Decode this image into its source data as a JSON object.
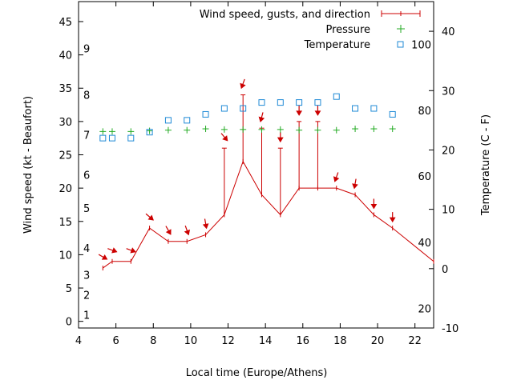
{
  "chart_data": {
    "type": "line",
    "xlabel": "Local time (Europe/Athens)",
    "ylabel": "Wind speed (kt - Beaufort)",
    "y2label": "Temperature (C - F)",
    "xlim": [
      4,
      23
    ],
    "ylim": [
      -1,
      48
    ],
    "y2lim": [
      -10,
      45
    ],
    "x_ticks": [
      4,
      6,
      8,
      10,
      12,
      14,
      16,
      18,
      20,
      22
    ],
    "y_ticks": [
      0,
      5,
      10,
      15,
      20,
      25,
      30,
      35,
      40,
      45
    ],
    "y2_ticks": [
      -10,
      0,
      10,
      20,
      30,
      40
    ],
    "beaufort_scale": [
      {
        "label": "1",
        "y": 1
      },
      {
        "label": "2",
        "y": 4
      },
      {
        "label": "3",
        "y": 7
      },
      {
        "label": "4",
        "y": 11
      },
      {
        "label": "5",
        "y": 17
      },
      {
        "label": "6",
        "y": 22
      },
      {
        "label": "7",
        "y": 28
      },
      {
        "label": "8",
        "y": 34
      },
      {
        "label": "9",
        "y": 41
      }
    ],
    "fahrenheit_scale": [
      {
        "label": "20",
        "y2": -6.7
      },
      {
        "label": "40",
        "y2": 4.4
      },
      {
        "label": "60",
        "y2": 15.6
      },
      {
        "label": "80",
        "y2": 26.7
      },
      {
        "label": "100",
        "y2": 37.8
      }
    ],
    "legend": {
      "wind": "Wind speed, gusts, and direction",
      "pressure": "Pressure",
      "temperature": "Temperature",
      "position": "top-right"
    },
    "series": [
      {
        "name": "Wind speed, gusts, and direction",
        "x": [
          5.3,
          5.8,
          6.8,
          7.8,
          8.8,
          9.8,
          10.8,
          11.8,
          12.8,
          13.8,
          14.8,
          15.8,
          16.8,
          17.8,
          18.8,
          19.8,
          20.8,
          23
        ],
        "speed": [
          8,
          9,
          9,
          14,
          12,
          12,
          13,
          16,
          24,
          19,
          16,
          20,
          20,
          20,
          19,
          16,
          14,
          9
        ],
        "gust": [
          null,
          null,
          null,
          null,
          null,
          null,
          null,
          26,
          34,
          29,
          26,
          30,
          30,
          null,
          null,
          null,
          null,
          null
        ],
        "direction_deg": [
          300,
          290,
          290,
          310,
          330,
          340,
          350,
          320,
          20,
          15,
          0,
          0,
          0,
          20,
          10,
          0,
          0,
          null
        ],
        "color": "#cc0000"
      },
      {
        "name": "Pressure",
        "x": [
          5.3,
          5.8,
          6.8,
          7.8,
          8.8,
          9.8,
          10.8,
          11.8,
          12.8,
          13.8,
          14.8,
          15.8,
          16.8,
          17.8,
          18.8,
          19.8,
          20.8
        ],
        "y": [
          28.5,
          28.5,
          28.5,
          28.6,
          28.7,
          28.7,
          28.9,
          28.8,
          28.8,
          28.8,
          28.8,
          28.7,
          28.7,
          28.7,
          28.9,
          28.9,
          28.9
        ],
        "color": "#22aa22"
      },
      {
        "name": "Temperature",
        "x": [
          5.3,
          5.8,
          6.8,
          7.8,
          8.8,
          9.8,
          10.8,
          11.8,
          12.8,
          13.8,
          14.8,
          15.8,
          16.8,
          17.8,
          18.8,
          19.8,
          20.8
        ],
        "y2": [
          22,
          22,
          22,
          23,
          25,
          25,
          26,
          27,
          27,
          28,
          28,
          28,
          28,
          29,
          27,
          27,
          26
        ],
        "color": "#1f8ad6"
      }
    ]
  }
}
